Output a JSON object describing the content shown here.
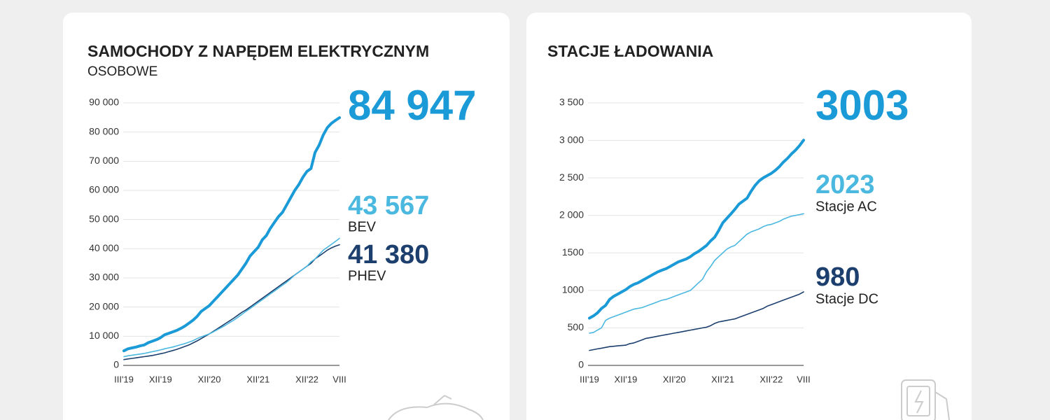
{
  "chart_data": [
    {
      "type": "line",
      "title": "SAMOCHODY Z NAPĘDEM ELEKTRYCZNYM",
      "subtitle": "OSOBOWE",
      "categories": [
        "III'19",
        null,
        null,
        null,
        null,
        null,
        null,
        null,
        null,
        "XII'19",
        null,
        null,
        null,
        null,
        null,
        null,
        null,
        null,
        null,
        null,
        null,
        "XII'20",
        null,
        null,
        null,
        null,
        null,
        null,
        null,
        null,
        null,
        null,
        null,
        "XII'21",
        null,
        null,
        null,
        null,
        null,
        null,
        null,
        null,
        null,
        null,
        null,
        "XII'22",
        null,
        null,
        null,
        null,
        null,
        null,
        null,
        "VIII"
      ],
      "ylim": [
        0,
        90000
      ],
      "yticks": [
        0,
        {
          "value": 10000,
          "label": "10 000"
        },
        {
          "value": 20000,
          "label": "20 000"
        },
        {
          "value": 30000,
          "label": "30 000"
        },
        {
          "value": 40000,
          "label": "40 000"
        },
        {
          "value": 50000,
          "label": "50 000"
        },
        {
          "value": 60000,
          "label": "60 000"
        },
        {
          "value": 70000,
          "label": "70 000"
        },
        {
          "value": 80000,
          "label": "80 000"
        },
        {
          "value": 90000,
          "label": "90 000"
        }
      ],
      "grid": true,
      "series": [
        {
          "color": "#1a9ad6",
          "label": "84 947",
          "values": [
            5000,
            5700,
            6000,
            6300,
            6700,
            7000,
            7800,
            8300,
            8800,
            9500,
            10500,
            11000,
            11500,
            12000,
            12700,
            13500,
            14500,
            15500,
            16800,
            18500,
            19500,
            20500,
            22000,
            23500,
            25000,
            26500,
            28000,
            29500,
            31000,
            33000,
            35000,
            37500,
            39000,
            40500,
            43000,
            44500,
            47000,
            49000,
            51000,
            52500,
            55000,
            57500,
            60000,
            62000,
            64500,
            66500,
            67500,
            73000,
            75500,
            79000,
            81500,
            83000,
            84000,
            84947
          ]
        },
        {
          "name": "BEV",
          "color": "#4bb8e0",
          "label": "43 567",
          "values": [
            3000,
            3300,
            3500,
            3700,
            3900,
            4100,
            4400,
            4700,
            5000,
            5300,
            5700,
            6000,
            6300,
            6700,
            7100,
            7500,
            8000,
            8500,
            9200,
            9800,
            10300,
            10800,
            11500,
            12300,
            13000,
            13800,
            14700,
            15500,
            16500,
            17500,
            18500,
            19500,
            20500,
            21500,
            22500,
            23500,
            24500,
            25500,
            26500,
            27500,
            28500,
            29700,
            31000,
            32000,
            33000,
            34000,
            35500,
            36500,
            38000,
            39500,
            40500,
            41500,
            42500,
            43567
          ]
        },
        {
          "name": "PHEV",
          "color": "#1c3f6e",
          "label": "41 380",
          "values": [
            2000,
            2200,
            2400,
            2600,
            2800,
            3000,
            3200,
            3400,
            3700,
            4000,
            4300,
            4700,
            5100,
            5500,
            6000,
            6500,
            7000,
            7700,
            8400,
            9200,
            10000,
            10800,
            11700,
            12600,
            13500,
            14400,
            15300,
            16200,
            17200,
            18200,
            19000,
            20000,
            21000,
            22000,
            23000,
            24000,
            25000,
            26000,
            27000,
            28000,
            29000,
            30000,
            31000,
            32000,
            33000,
            34000,
            35000,
            36500,
            37500,
            38500,
            39500,
            40300,
            40900,
            41380
          ]
        }
      ]
    },
    {
      "type": "line",
      "title": "STACJE ŁADOWANIA",
      "categories": [
        "III'19",
        null,
        null,
        null,
        null,
        null,
        null,
        null,
        null,
        "XII'19",
        null,
        null,
        null,
        null,
        null,
        null,
        null,
        null,
        null,
        null,
        null,
        "XII'20",
        null,
        null,
        null,
        null,
        null,
        null,
        null,
        null,
        null,
        null,
        null,
        "XII'21",
        null,
        null,
        null,
        null,
        null,
        null,
        null,
        null,
        null,
        null,
        null,
        "XII'22",
        null,
        null,
        null,
        null,
        null,
        null,
        null,
        "VIII"
      ],
      "ylim": [
        0,
        3500
      ],
      "yticks": [
        0,
        500,
        1000,
        1500,
        {
          "value": 2000,
          "label": "2 000"
        },
        {
          "value": 2500,
          "label": "2 500"
        },
        {
          "value": 3000,
          "label": "3 000"
        },
        {
          "value": 3500,
          "label": "3 500"
        }
      ],
      "grid": true,
      "series": [
        {
          "color": "#1a9ad6",
          "label": "3003",
          "values": [
            630,
            660,
            700,
            760,
            800,
            880,
            920,
            950,
            980,
            1010,
            1050,
            1080,
            1100,
            1130,
            1160,
            1190,
            1220,
            1250,
            1270,
            1290,
            1320,
            1350,
            1380,
            1400,
            1420,
            1450,
            1490,
            1520,
            1560,
            1600,
            1660,
            1710,
            1800,
            1900,
            1960,
            2020,
            2080,
            2150,
            2190,
            2230,
            2320,
            2400,
            2460,
            2500,
            2530,
            2560,
            2600,
            2650,
            2710,
            2760,
            2820,
            2870,
            2930,
            3003
          ]
        },
        {
          "name": "Stacje AC",
          "color": "#4bb8e0",
          "label": "2023",
          "values": [
            430,
            440,
            470,
            500,
            600,
            630,
            650,
            670,
            690,
            710,
            730,
            750,
            760,
            770,
            790,
            810,
            830,
            850,
            870,
            880,
            900,
            920,
            940,
            960,
            980,
            1000,
            1050,
            1100,
            1150,
            1250,
            1320,
            1400,
            1450,
            1500,
            1550,
            1580,
            1600,
            1650,
            1700,
            1750,
            1780,
            1800,
            1820,
            1850,
            1870,
            1880,
            1900,
            1920,
            1950,
            1970,
            1990,
            2000,
            2010,
            2023
          ]
        },
        {
          "name": "Stacje DC",
          "color": "#1c3f6e",
          "label": "980",
          "values": [
            200,
            210,
            220,
            230,
            240,
            250,
            255,
            260,
            265,
            270,
            290,
            300,
            320,
            340,
            360,
            370,
            380,
            390,
            400,
            410,
            420,
            430,
            440,
            450,
            460,
            470,
            480,
            490,
            500,
            510,
            530,
            560,
            580,
            590,
            600,
            610,
            620,
            640,
            660,
            680,
            700,
            720,
            740,
            760,
            790,
            810,
            830,
            850,
            870,
            890,
            910,
            930,
            950,
            980
          ]
        }
      ]
    }
  ]
}
